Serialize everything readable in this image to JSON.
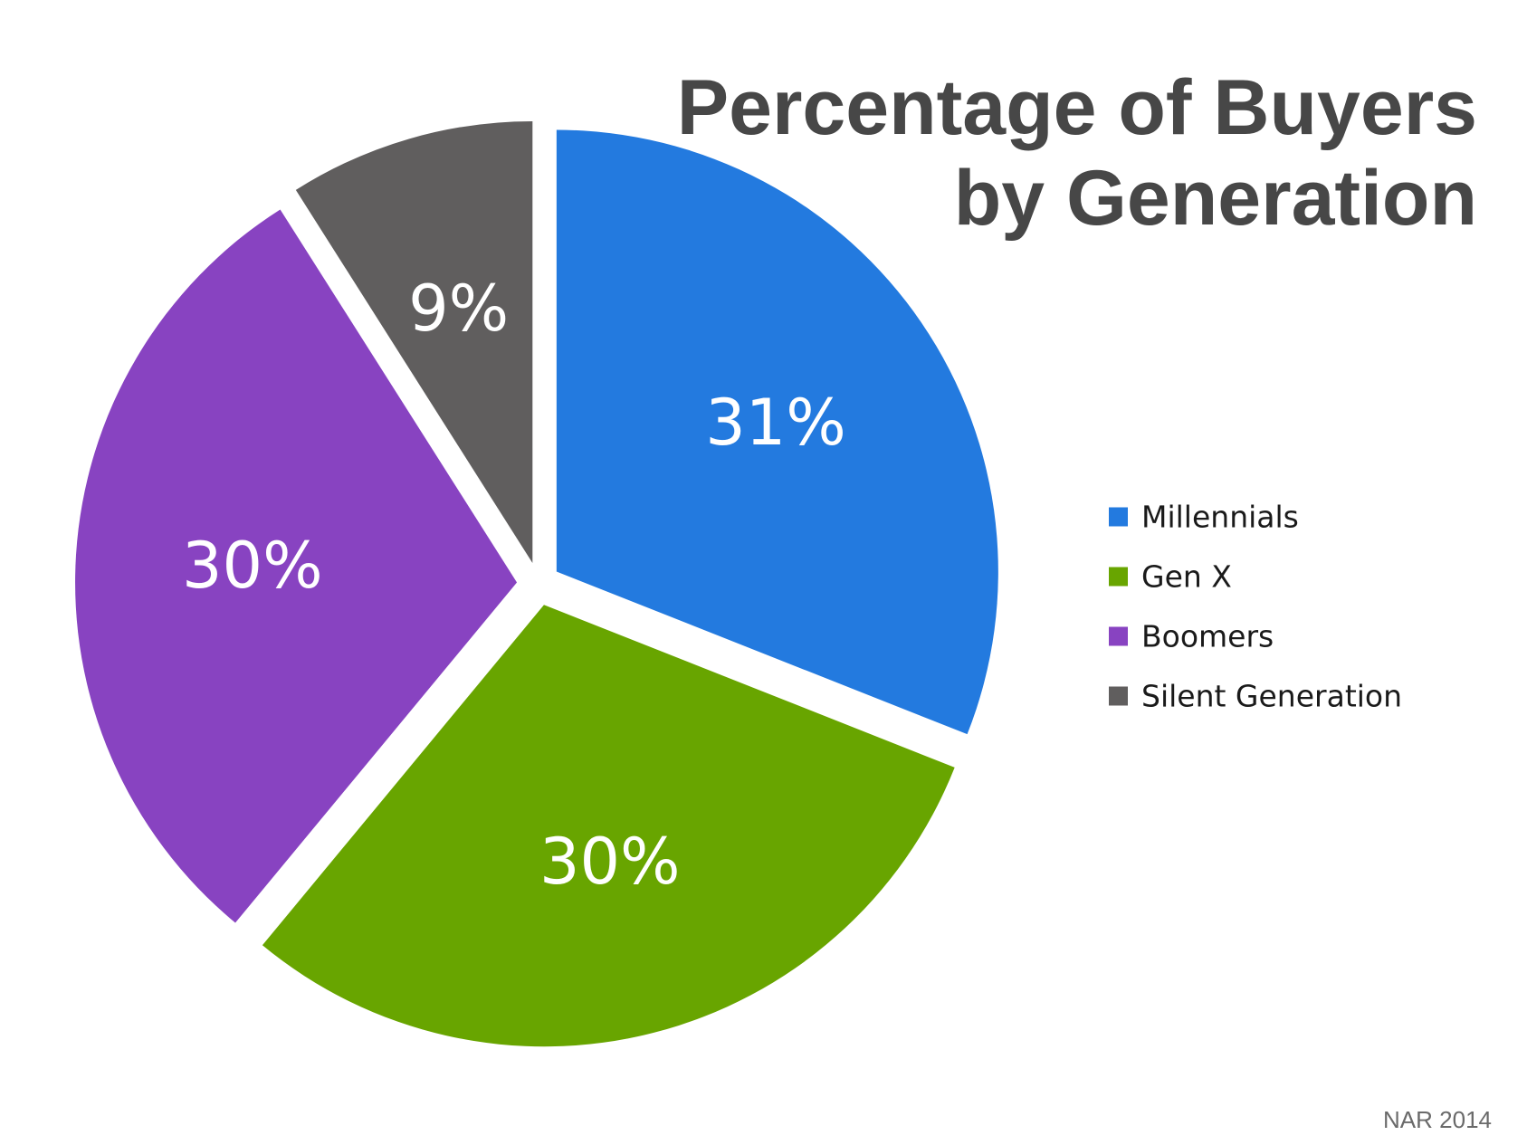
{
  "chart_data": {
    "type": "pie",
    "title_lines": [
      "Percentage of Buyers",
      "by Generation"
    ],
    "categories": [
      "Millennials",
      "Gen X",
      "Boomers",
      "Silent Generation"
    ],
    "values": [
      31,
      30,
      30,
      9
    ],
    "labels": [
      "31%",
      "30%",
      "30%",
      "9%"
    ],
    "colors": [
      "#237ADF",
      "#68A500",
      "#8843C1",
      "#605E5E"
    ],
    "legend_position": "right",
    "exploded": true
  },
  "source": "NAR 2014"
}
